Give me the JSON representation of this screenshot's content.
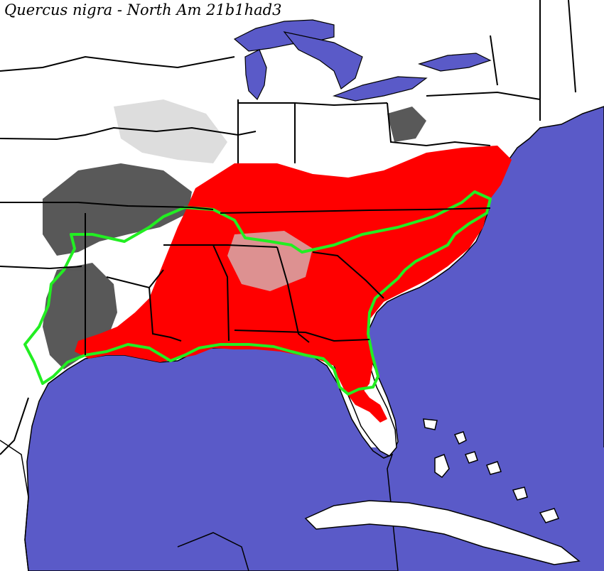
{
  "map": {
    "title": "Quercus nigra - North Am 21b1had3",
    "colors": {
      "water": "#5a5ac8",
      "land": "#ffffff",
      "modeled_range": "#ff0000",
      "low_suitability": "#3c3c3c",
      "observed_range_outline": "#22ee22",
      "boundaries": "#000000"
    },
    "region": "eastern-north-america",
    "water_bodies": [
      "atlantic-ocean",
      "gulf-of-mexico",
      "great-lakes"
    ],
    "islands": [
      "cuba",
      "bahamas"
    ]
  }
}
